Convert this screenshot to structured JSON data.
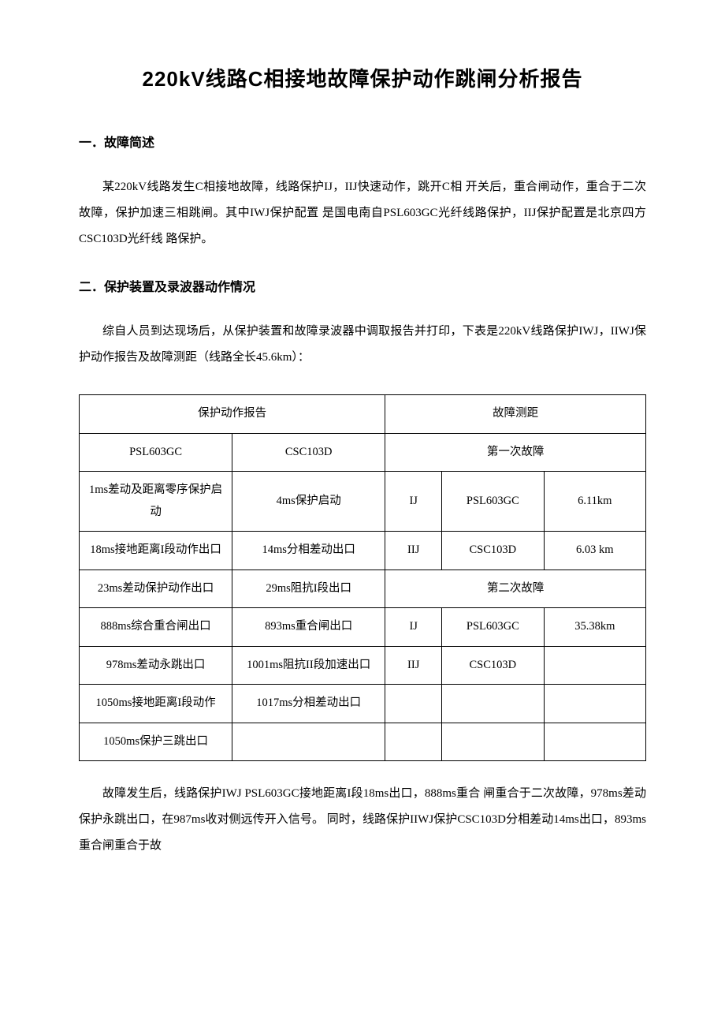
{
  "title": "220kV线路C相接地故障保护动作跳闸分析报告",
  "section1": {
    "heading": "一．故障简述",
    "para": "某220kV线路发生C相接地故障，线路保护IJ，IIJ快速动作，跳开C相 开关后，重合闸动作，重合于二次故障，保护加速三相跳闸。其中IWJ保护配置 是国电南自PSL603GC光纤线路保护，IIJ保护配置是北京四方CSC103D光纤线 路保护。"
  },
  "section2": {
    "heading": "二．保护装置及录波器动作情况",
    "para1": "综自人员到达现场后，从保护装置和故障录波器中调取报告并打印，下表是220kV线路保护IWJ，IIWJ保护动作报告及故障测距（线路全长45.6km）：",
    "para2": "故障发生后，线路保护IWJ PSL603GC接地距离I段18ms出口，888ms重合 闸重合于二次故障，978ms差动保护永跳出口，在987ms收对侧远传开入信号。 同时，线路保护IIWJ保护CSC103D分相差动14ms出口，893ms重合闸重合于故"
  },
  "table": {
    "header_left": "保护动作报告",
    "header_right": "故障测距",
    "sub_left_a": "PSL603GC",
    "sub_left_b": "CSC103D",
    "sub_right": "第一次故障",
    "rows": [
      {
        "a": "1ms差动及距离零序保护启动",
        "b": "4ms保护启动",
        "c": "IJ",
        "d": "PSL603GC",
        "e": "6.11km"
      },
      {
        "a": "18ms接地距离I段动作出口",
        "b": "14ms分相差动出口",
        "c": "IIJ",
        "d": "CSC103D",
        "e": "6.03 km"
      }
    ],
    "second_fault_header": "第二次故障",
    "row3": {
      "a": "23ms差动保护动作出口",
      "b": "29ms阻抗I段出口"
    },
    "row4": {
      "a": "888ms综合重合闸出口",
      "b": "893ms重合闸出口",
      "c": "IJ",
      "d": "PSL603GC",
      "e": "35.38km"
    },
    "row5": {
      "a": "978ms差动永跳出口",
      "b": "1001ms阻抗II段加速出口",
      "c": "IIJ",
      "d": "CSC103D",
      "e": ""
    },
    "row6": {
      "a": "1050ms接地距离I段动作",
      "b": "1017ms分相差动出口",
      "c": "",
      "d": "",
      "e": ""
    },
    "row7": {
      "a": "1050ms保护三跳出口",
      "b": "",
      "c": "",
      "d": "",
      "e": ""
    }
  },
  "colors": {
    "text": "#000000",
    "background": "#ffffff",
    "border": "#000000"
  }
}
